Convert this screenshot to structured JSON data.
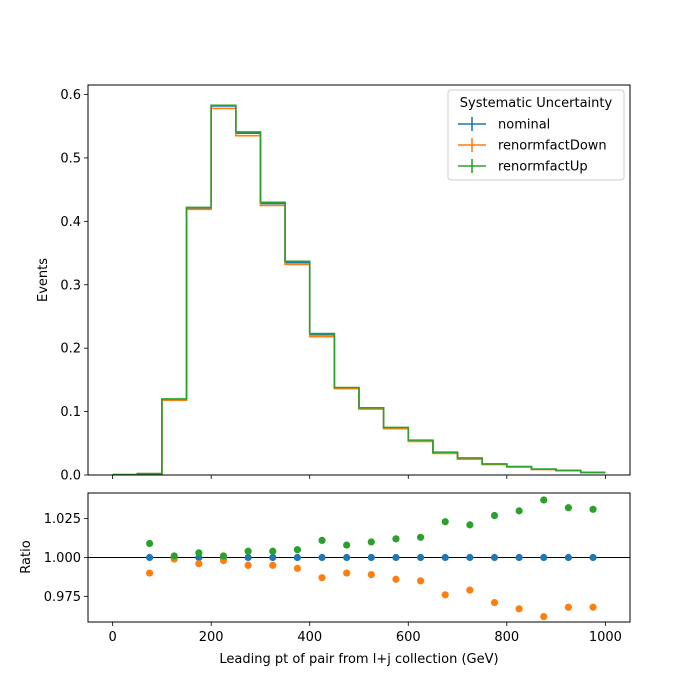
{
  "chart_data": [
    {
      "type": "step-histogram",
      "panel": "main",
      "ylabel": "Events",
      "xlim": [
        -50,
        1050
      ],
      "ylim": [
        0,
        0.615
      ],
      "yticks": [
        0.0,
        0.1,
        0.2,
        0.3,
        0.4,
        0.5,
        0.6
      ],
      "ytick_labels": [
        "0.0",
        "0.1",
        "0.2",
        "0.3",
        "0.4",
        "0.5",
        "0.6"
      ],
      "xticks": [
        0,
        200,
        400,
        600,
        800,
        1000
      ],
      "bin_edges": [
        0,
        50,
        100,
        150,
        200,
        250,
        300,
        350,
        400,
        450,
        500,
        550,
        600,
        650,
        700,
        750,
        800,
        850,
        900,
        950,
        1000
      ],
      "legend": {
        "title": "Systematic Uncertainty",
        "position": "top-right"
      },
      "series": [
        {
          "name": "nominal",
          "color": "#1f77b4",
          "values": [
            0.0005,
            0.002,
            0.119,
            0.421,
            0.582,
            0.539,
            0.428,
            0.335,
            0.221,
            0.137,
            0.105,
            0.074,
            0.054,
            0.035,
            0.026,
            0.017,
            0.013,
            0.009,
            0.007,
            0.004
          ]
        },
        {
          "name": "renormfactDown",
          "color": "#ff7f0e",
          "values": [
            0.0005,
            0.002,
            0.118,
            0.419,
            0.578,
            0.535,
            0.425,
            0.332,
            0.218,
            0.136,
            0.104,
            0.073,
            0.053,
            0.034,
            0.025,
            0.0165,
            0.0125,
            0.0087,
            0.0068,
            0.0039
          ]
        },
        {
          "name": "renormfactUp",
          "color": "#2ca02c",
          "values": [
            0.0005,
            0.002,
            0.12,
            0.422,
            0.583,
            0.541,
            0.43,
            0.337,
            0.223,
            0.138,
            0.106,
            0.075,
            0.055,
            0.036,
            0.027,
            0.0175,
            0.0134,
            0.0093,
            0.0072,
            0.0041
          ]
        }
      ]
    },
    {
      "type": "scatter",
      "panel": "ratio",
      "ylabel": "Ratio",
      "xlabel": "Leading pt of pair from l+j collection (GeV)",
      "xlim": [
        -50,
        1050
      ],
      "ylim": [
        0.9585,
        1.0415
      ],
      "yticks": [
        0.975,
        1.0,
        1.025
      ],
      "ytick_labels": [
        "0.975",
        "1.000",
        "1.025"
      ],
      "xticks": [
        0,
        200,
        400,
        600,
        800,
        1000
      ],
      "xtick_labels": [
        "0",
        "200",
        "400",
        "600",
        "800",
        "1000"
      ],
      "reference_line": 1.0,
      "x": [
        75,
        125,
        175,
        225,
        275,
        325,
        375,
        425,
        475,
        525,
        575,
        625,
        675,
        725,
        775,
        825,
        875,
        925,
        975
      ],
      "series": [
        {
          "name": "nominal",
          "color": "#1f77b4",
          "values": [
            1.0,
            1.0,
            1.0,
            1.0,
            1.0,
            1.0,
            1.0,
            1.0,
            1.0,
            1.0,
            1.0,
            1.0,
            1.0,
            1.0,
            1.0,
            1.0,
            1.0,
            1.0,
            1.0
          ]
        },
        {
          "name": "renormfactDown",
          "color": "#ff7f0e",
          "values": [
            0.99,
            0.999,
            0.996,
            0.998,
            0.995,
            0.995,
            0.993,
            0.987,
            0.99,
            0.989,
            0.986,
            0.985,
            0.976,
            0.979,
            0.971,
            0.967,
            0.962,
            0.968,
            0.968
          ]
        },
        {
          "name": "renormfactUp",
          "color": "#2ca02c",
          "values": [
            1.009,
            1.001,
            1.003,
            1.001,
            1.004,
            1.004,
            1.005,
            1.011,
            1.008,
            1.01,
            1.012,
            1.013,
            1.023,
            1.021,
            1.027,
            1.03,
            1.037,
            1.032,
            1.031
          ]
        }
      ]
    }
  ]
}
